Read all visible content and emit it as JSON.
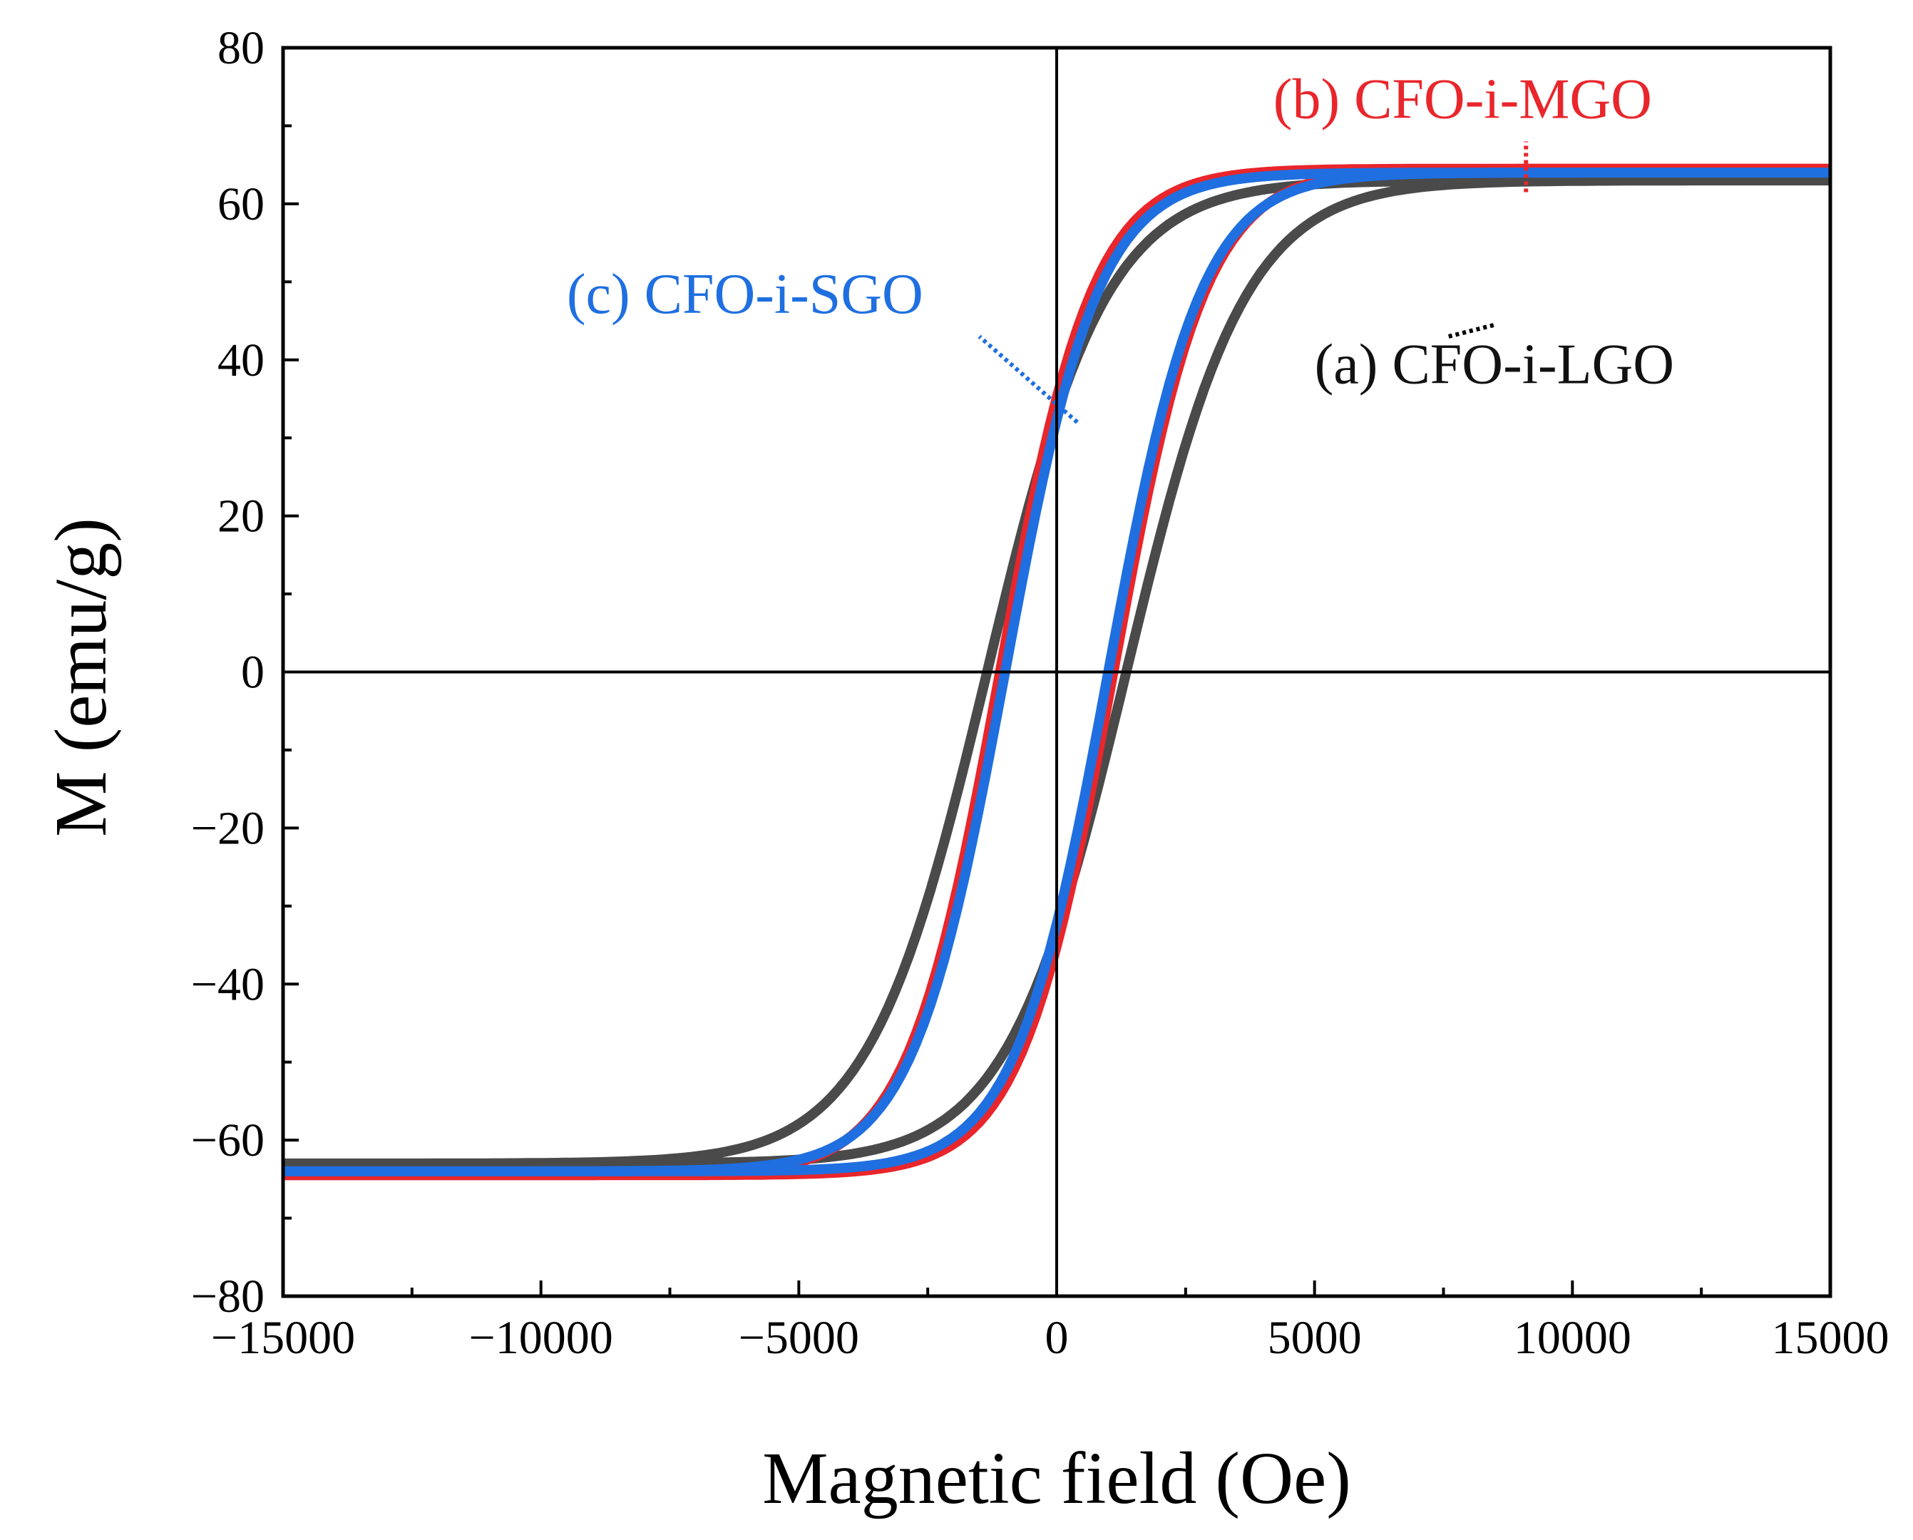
{
  "chart_data": {
    "type": "line",
    "title": "",
    "xlabel": "Magnetic field (Oe)",
    "ylabel": "M (emu/g)",
    "xlim": [
      -15000,
      15000
    ],
    "ylim": [
      -80,
      80
    ],
    "xticks": [
      -15000,
      -10000,
      -5000,
      0,
      5000,
      10000,
      15000
    ],
    "yticks": [
      -80,
      -60,
      -40,
      -20,
      0,
      20,
      40,
      60,
      80
    ],
    "x_minor_step": 2500,
    "y_minor_step": 10,
    "grid": false,
    "zero_lines": true,
    "series": [
      {
        "id": "lgo",
        "name": "(a) CFO-i-LGO",
        "color": "#4a4a4a",
        "Ms": 63,
        "Hc": 1350,
        "width_oe": 2300,
        "label_anchor": [
          7600,
          43
        ],
        "label_text_pos": [
          5000,
          37
        ]
      },
      {
        "id": "mgo",
        "name": "(b) CFO-i-MGO",
        "color": "#e8262b",
        "Ms": 64.5,
        "Hc": 1100,
        "width_oe": 1800,
        "label_anchor": [
          9100,
          61.5
        ],
        "label_text_pos": [
          4200,
          71
        ]
      },
      {
        "id": "sgo",
        "name": "(c) CFO-i-SGO",
        "color": "#1f6fe0",
        "Ms": 64,
        "Hc": 1000,
        "width_oe": 1800,
        "label_anchor": [
          400,
          32
        ],
        "label_text_pos": [
          -9500,
          46
        ]
      }
    ]
  }
}
